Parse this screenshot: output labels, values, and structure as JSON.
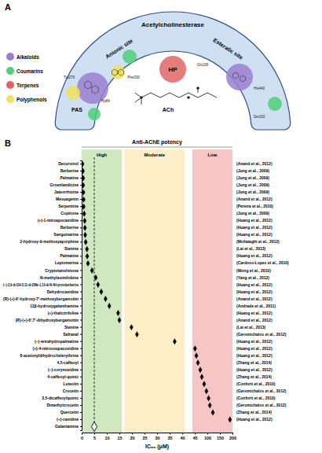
{
  "diagram": {
    "label": "A",
    "enzyme": "Acetylcholinesterase",
    "sites": {
      "anionic": "Anionic site",
      "esteratic": "Esteratic site",
      "pas": "PAS",
      "hp": "HP"
    },
    "ligand": "ACh",
    "residues": [
      "Trp279",
      "Trp84",
      "Phe330",
      "Glu199",
      "His440",
      "Ser200"
    ],
    "legend": [
      {
        "label": "Alkaloids",
        "color": "#9b7fcf"
      },
      {
        "label": "Coumarins",
        "color": "#4fce77"
      },
      {
        "label": "Terpenes",
        "color": "#e06666"
      },
      {
        "label": "Polyphenols",
        "color": "#f2e05a"
      }
    ]
  },
  "chart_data": {
    "type": "dot",
    "orientation": "horizontal",
    "title": "Anti-AChE potency",
    "annotations": [
      "B"
    ],
    "categories": [
      "Decursinol",
      "Berberine",
      "Palmatine",
      "Groenlandicine",
      "Jateorrhizine",
      "Mesuagenin",
      "Serpentine",
      "Coptisine",
      "(+)-1-nitroapocavidine",
      "Berberine",
      "Sanguinarine",
      "2-hydroxy-9-methoxyaporphine",
      "Stenine",
      "Palmatine",
      "Leptomerine",
      "Cryptotanshinone",
      "N-methylasimilobine",
      "(−)-2,9-di-OH-3,11-di-OMe-1,10-di-N-4H-protoberberine",
      "Dehydrocavidine",
      "(R)-(+)-6'-hydroxy-7'-methoxybergamottin",
      "11β-hydroxygalanthamine",
      "(+)-thalictrifoline",
      "(R)-(+)-6',7'-dihydroxybergamottin",
      "Stenine",
      "Safranal",
      "(−)-tetrahydropalmatine",
      "(+)-4-nitrosoupacovidine",
      "8-acetonyldihydrochelerythrine",
      "4,5-caffeoyl",
      "(−)-corynoxidine",
      "4-caffeoyl-quinic",
      "Luteolin",
      "Crocetin",
      "3,5-dicaffeoylquinic",
      "Dimethylcrocetin",
      "Quercetin",
      "(+)-cavidine",
      "Galantamine"
    ],
    "references": [
      "(Anand et al., 2012)",
      "(Jung et al., 2009)",
      "(Jung et al., 2009)",
      "(Jung et al., 2009)",
      "(Jung et al., 2009)",
      "(Anand et al., 2012)",
      "(Pereira et al., 2010)",
      "(Jung et al., 2009)",
      "(Huang et al., 2012)",
      "(Huang et al., 2012)",
      "(Huang et al., 2012)",
      "(Mollataghi et al., 2012)",
      "(Lai et al., 2013)",
      "(Huang et al., 2012)",
      "(Cardoso-Lopes et al., 2010)",
      "(Wong et al., 2010)",
      "(Yang et al., 2012)",
      "(Huang et al., 2012)",
      "(Huang et al., 2012)",
      "(Anand et al., 2012)",
      "(Andrade et al., 2011)",
      "(Huang et al., 2012)",
      "(Anand et al., 2012)",
      "(Lai et al., 2013)",
      "(Geromichalos et al., 2012)",
      "(Huang et al., 2012)",
      "(Huang et al., 2012)",
      "(Huang et al., 2012)",
      "(Zhang et al., 2014)",
      "(Huang et al., 2012)",
      "(Zhang et al., 2014)",
      "(Conforti et al., 2010)",
      "(Geromichalos et al., 2012)",
      "(Conforti et al., 2010)",
      "(Geromichalos et al., 2012)",
      "(Zhang et al., 2014)",
      "(Huang et al., 2012)",
      null
    ],
    "values": [
      0.3,
      0.5,
      0.6,
      0.6,
      0.7,
      0.8,
      0.8,
      1.0,
      1.2,
      1.3,
      1.4,
      1.6,
      2.1,
      2.2,
      2.5,
      4.1,
      5.6,
      6.5,
      7.8,
      9.5,
      11,
      14.5,
      15,
      19.8,
      22,
      37,
      46,
      52,
      59,
      69,
      76,
      86,
      96,
      105,
      110,
      122,
      190,
      5
    ],
    "color": "#000000",
    "marker": "diamond",
    "xlabel": "IC₅₀ (μM)",
    "xlim": [
      0,
      200
    ],
    "xticks": [
      0,
      5,
      10,
      15,
      20,
      25,
      30,
      35,
      40,
      45,
      100,
      150,
      200
    ],
    "bands": [
      {
        "label": "High",
        "range": [
          0,
          16
        ],
        "color": "#cfe8c0"
      },
      {
        "label": "Moderate",
        "range": [
          17,
          41
        ],
        "color": "#fcefc7"
      },
      {
        "label": "Low",
        "range": [
          44,
          200
        ],
        "color": "#f6c5c5"
      }
    ],
    "grid": false
  }
}
